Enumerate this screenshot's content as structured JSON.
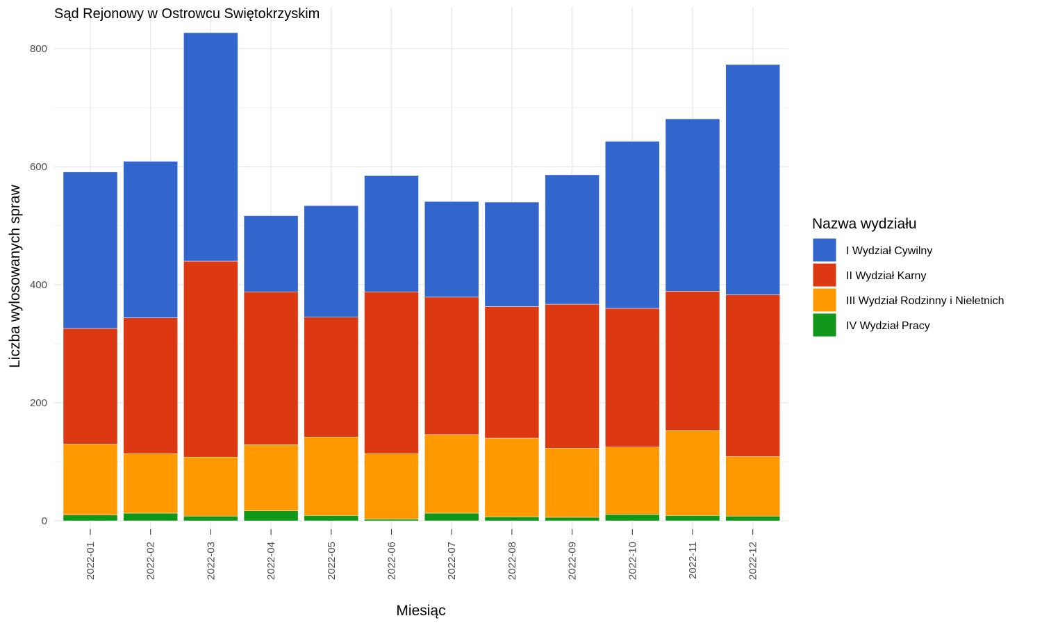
{
  "chart_data": {
    "type": "bar",
    "stacked": true,
    "title": "Sąd Rejonowy w Ostrowcu Swiętokrzyskim",
    "xlabel": "Miesiąc",
    "ylabel": "Liczba wylosowanych spraw",
    "ylim": [
      0,
      845
    ],
    "yticks": [
      0,
      200,
      400,
      600,
      800
    ],
    "grid": true,
    "legend": {
      "title": "Nazwa wydziału",
      "position": "right"
    },
    "categories": [
      "2022-01",
      "2022-02",
      "2022-03",
      "2022-04",
      "2022-05",
      "2022-06",
      "2022-07",
      "2022-08",
      "2022-09",
      "2022-10",
      "2022-11",
      "2022-12"
    ],
    "series": [
      {
        "name": "IV Wydział Pracy",
        "color": "#109618",
        "values": [
          10,
          13,
          8,
          17,
          9,
          3,
          13,
          7,
          6,
          11,
          9,
          8
        ]
      },
      {
        "name": "III Wydział Rodzinny i Nieletnich",
        "color": "#ff9900",
        "values": [
          120,
          101,
          100,
          112,
          133,
          111,
          133,
          133,
          117,
          114,
          144,
          101
        ]
      },
      {
        "name": "II Wydział Karny",
        "color": "#dc3912",
        "values": [
          196,
          230,
          332,
          259,
          203,
          274,
          233,
          223,
          244,
          235,
          236,
          274
        ]
      },
      {
        "name": "I Wydział Cywilny",
        "color": "#3366cc",
        "values": [
          265,
          265,
          387,
          129,
          189,
          197,
          162,
          177,
          219,
          283,
          292,
          390
        ]
      }
    ],
    "legend_order": [
      "I Wydział Cywilny",
      "II Wydział Karny",
      "III Wydział Rodzinny i Nieletnich",
      "IV Wydział Pracy"
    ]
  }
}
